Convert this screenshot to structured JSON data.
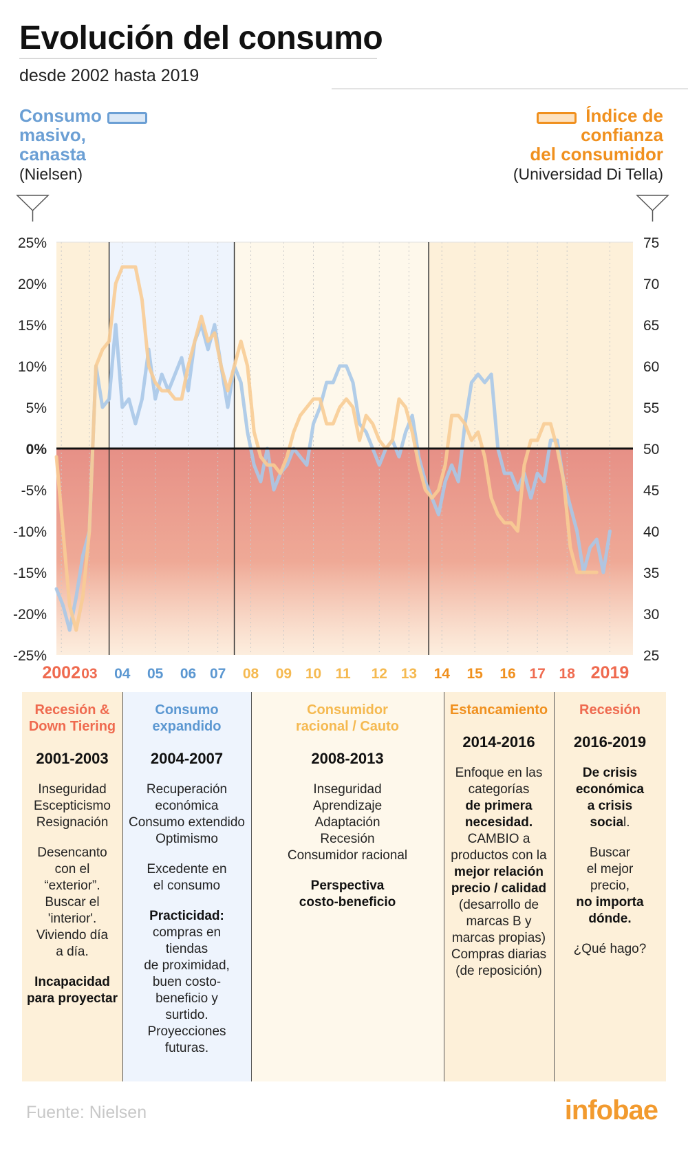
{
  "title": "Evolución del consumo",
  "subtitle": "desde 2002 hasta 2019",
  "legend": {
    "left": {
      "lines": [
        "Consumo",
        "masivo,",
        "canasta"
      ],
      "source": "(Nielsen)",
      "color": "#6b9fd4"
    },
    "right": {
      "lines": [
        "Índice de",
        "confianza",
        "del consumidor"
      ],
      "source": "(Universidad Di Tella)",
      "color": "#f0901e"
    }
  },
  "chart_data": {
    "type": "line",
    "x_start": 2002.0,
    "x_end": 2019.5,
    "y_left": {
      "ticks": [
        "25%",
        "20%",
        "15%",
        "10%",
        "5%",
        "0%",
        "-5%",
        "-10%",
        "-15%",
        "-20%",
        "-25%"
      ],
      "range": [
        -25,
        25
      ]
    },
    "y_right": {
      "ticks": [
        "75",
        "70",
        "65",
        "60",
        "55",
        "50",
        "45",
        "40",
        "35",
        "30",
        "25"
      ],
      "range": [
        25,
        75
      ]
    },
    "x_ticks": [
      {
        "label": "2002",
        "x": 2002.15,
        "color": "#ef6a4f"
      },
      {
        "label": "03",
        "x": 2003.0,
        "color": "#ef6a4f"
      },
      {
        "label": "04",
        "x": 2004.0,
        "color": "#5b97d1"
      },
      {
        "label": "05",
        "x": 2005.0,
        "color": "#5b97d1"
      },
      {
        "label": "06",
        "x": 2006.0,
        "color": "#5b97d1"
      },
      {
        "label": "07",
        "x": 2006.9,
        "color": "#5b97d1"
      },
      {
        "label": "08",
        "x": 2007.9,
        "color": "#f5b950"
      },
      {
        "label": "09",
        "x": 2008.9,
        "color": "#f5b950"
      },
      {
        "label": "10",
        "x": 2009.8,
        "color": "#f5b950"
      },
      {
        "label": "11",
        "x": 2010.7,
        "color": "#f5b950"
      },
      {
        "label": "12",
        "x": 2011.8,
        "color": "#f5b950"
      },
      {
        "label": "13",
        "x": 2012.7,
        "color": "#f5b950"
      },
      {
        "label": "14",
        "x": 2013.7,
        "color": "#f0901e"
      },
      {
        "label": "15",
        "x": 2014.7,
        "color": "#f0901e"
      },
      {
        "label": "16",
        "x": 2015.7,
        "color": "#f0901e"
      },
      {
        "label": "17",
        "x": 2016.6,
        "color": "#ef6a4f"
      },
      {
        "label": "18",
        "x": 2017.5,
        "color": "#ef6a4f"
      },
      {
        "label": "2019",
        "x": 2018.8,
        "color": "#ef6a4f"
      }
    ],
    "phase_dividers": [
      2003.6,
      2007.4,
      2013.3
    ],
    "series": [
      {
        "name": "Consumo masivo, canasta",
        "axis": "left",
        "color": "#a9c8e8",
        "points": [
          [
            2002.0,
            -17
          ],
          [
            2002.2,
            -19
          ],
          [
            2002.4,
            -22
          ],
          [
            2002.6,
            -18
          ],
          [
            2002.8,
            -13
          ],
          [
            2003.0,
            -10
          ],
          [
            2003.2,
            10
          ],
          [
            2003.4,
            5
          ],
          [
            2003.6,
            6
          ],
          [
            2003.8,
            15
          ],
          [
            2004.0,
            5
          ],
          [
            2004.2,
            6
          ],
          [
            2004.4,
            3
          ],
          [
            2004.6,
            6
          ],
          [
            2004.8,
            12
          ],
          [
            2005.0,
            6
          ],
          [
            2005.2,
            9
          ],
          [
            2005.4,
            7
          ],
          [
            2005.6,
            9
          ],
          [
            2005.8,
            11
          ],
          [
            2006.0,
            7
          ],
          [
            2006.2,
            13
          ],
          [
            2006.4,
            15
          ],
          [
            2006.6,
            12
          ],
          [
            2006.8,
            15
          ],
          [
            2007.0,
            10
          ],
          [
            2007.2,
            5
          ],
          [
            2007.4,
            10
          ],
          [
            2007.6,
            8
          ],
          [
            2007.8,
            2
          ],
          [
            2008.0,
            -2
          ],
          [
            2008.2,
            -4
          ],
          [
            2008.4,
            0
          ],
          [
            2008.6,
            -5
          ],
          [
            2008.8,
            -3
          ],
          [
            2009.0,
            -2
          ],
          [
            2009.2,
            0
          ],
          [
            2009.4,
            -1
          ],
          [
            2009.6,
            -2
          ],
          [
            2009.8,
            3
          ],
          [
            2010.0,
            5
          ],
          [
            2010.2,
            8
          ],
          [
            2010.4,
            8
          ],
          [
            2010.6,
            10
          ],
          [
            2010.8,
            10
          ],
          [
            2011.0,
            8
          ],
          [
            2011.2,
            3
          ],
          [
            2011.4,
            2
          ],
          [
            2011.6,
            0
          ],
          [
            2011.8,
            -2
          ],
          [
            2012.0,
            0
          ],
          [
            2012.2,
            1
          ],
          [
            2012.4,
            -1
          ],
          [
            2012.6,
            2
          ],
          [
            2012.8,
            4
          ],
          [
            2013.0,
            -1
          ],
          [
            2013.2,
            -4
          ],
          [
            2013.4,
            -6
          ],
          [
            2013.6,
            -8
          ],
          [
            2013.8,
            -4
          ],
          [
            2014.0,
            -2
          ],
          [
            2014.2,
            -4
          ],
          [
            2014.4,
            3
          ],
          [
            2014.6,
            8
          ],
          [
            2014.8,
            9
          ],
          [
            2015.0,
            8
          ],
          [
            2015.2,
            9
          ],
          [
            2015.4,
            0
          ],
          [
            2015.6,
            -3
          ],
          [
            2015.8,
            -3
          ],
          [
            2016.0,
            -5
          ],
          [
            2016.2,
            -3
          ],
          [
            2016.4,
            -6
          ],
          [
            2016.6,
            -3
          ],
          [
            2016.8,
            -4
          ],
          [
            2017.0,
            1
          ],
          [
            2017.2,
            1
          ],
          [
            2017.4,
            -4
          ],
          [
            2017.6,
            -7
          ],
          [
            2017.8,
            -10
          ],
          [
            2018.0,
            -15
          ],
          [
            2018.2,
            -12
          ],
          [
            2018.4,
            -11
          ],
          [
            2018.6,
            -15
          ],
          [
            2018.8,
            -10
          ]
        ]
      },
      {
        "name": "Índice de confianza del consumidor",
        "axis": "right",
        "color": "#f8cc95",
        "points": [
          [
            2002.0,
            49
          ],
          [
            2002.2,
            40
          ],
          [
            2002.4,
            31
          ],
          [
            2002.6,
            28
          ],
          [
            2002.8,
            32
          ],
          [
            2003.0,
            40
          ],
          [
            2003.2,
            60
          ],
          [
            2003.4,
            62
          ],
          [
            2003.6,
            63
          ],
          [
            2003.8,
            70
          ],
          [
            2004.0,
            72
          ],
          [
            2004.2,
            72
          ],
          [
            2004.4,
            72
          ],
          [
            2004.6,
            68
          ],
          [
            2004.8,
            60
          ],
          [
            2005.0,
            58
          ],
          [
            2005.2,
            57
          ],
          [
            2005.4,
            57
          ],
          [
            2005.6,
            56
          ],
          [
            2005.8,
            56
          ],
          [
            2006.0,
            60
          ],
          [
            2006.2,
            63
          ],
          [
            2006.4,
            66
          ],
          [
            2006.6,
            63
          ],
          [
            2006.8,
            64
          ],
          [
            2007.0,
            60
          ],
          [
            2007.2,
            57
          ],
          [
            2007.4,
            60
          ],
          [
            2007.6,
            63
          ],
          [
            2007.8,
            60
          ],
          [
            2008.0,
            52
          ],
          [
            2008.2,
            49
          ],
          [
            2008.4,
            48
          ],
          [
            2008.6,
            48
          ],
          [
            2008.8,
            47
          ],
          [
            2009.0,
            49
          ],
          [
            2009.2,
            52
          ],
          [
            2009.4,
            54
          ],
          [
            2009.6,
            55
          ],
          [
            2009.8,
            56
          ],
          [
            2010.0,
            56
          ],
          [
            2010.2,
            53
          ],
          [
            2010.4,
            53
          ],
          [
            2010.6,
            55
          ],
          [
            2010.8,
            56
          ],
          [
            2011.0,
            55
          ],
          [
            2011.2,
            51
          ],
          [
            2011.4,
            54
          ],
          [
            2011.6,
            53
          ],
          [
            2011.8,
            51
          ],
          [
            2012.0,
            50
          ],
          [
            2012.2,
            51
          ],
          [
            2012.4,
            56
          ],
          [
            2012.6,
            55
          ],
          [
            2012.8,
            52
          ],
          [
            2013.0,
            48
          ],
          [
            2013.2,
            45
          ],
          [
            2013.4,
            44
          ],
          [
            2013.6,
            45
          ],
          [
            2013.8,
            48
          ],
          [
            2014.0,
            54
          ],
          [
            2014.2,
            54
          ],
          [
            2014.4,
            53
          ],
          [
            2014.6,
            51
          ],
          [
            2014.8,
            52
          ],
          [
            2015.0,
            49
          ],
          [
            2015.2,
            44
          ],
          [
            2015.4,
            42
          ],
          [
            2015.6,
            41
          ],
          [
            2015.8,
            41
          ],
          [
            2016.0,
            40
          ],
          [
            2016.2,
            48
          ],
          [
            2016.4,
            51
          ],
          [
            2016.6,
            51
          ],
          [
            2016.8,
            53
          ],
          [
            2017.0,
            53
          ],
          [
            2017.2,
            50
          ],
          [
            2017.4,
            46
          ],
          [
            2017.6,
            38
          ],
          [
            2017.8,
            35
          ],
          [
            2018.0,
            35
          ],
          [
            2018.2,
            35
          ],
          [
            2018.4,
            35
          ]
        ]
      }
    ]
  },
  "phases": [
    {
      "title": [
        "Recesión &",
        "Down Tiering"
      ],
      "years": "2001-2003",
      "color": "#ef6a4f",
      "bg": "#fdf0d9",
      "body": [
        [
          "Inseguridad",
          "Escepticismo",
          "Resignación"
        ],
        [
          "Desencanto",
          "con el",
          "“exterior”.",
          "Buscar el",
          "'interior'.",
          "Viviendo día",
          "a día."
        ]
      ],
      "bold": [
        "Incapacidad",
        "para proyectar"
      ]
    },
    {
      "title": [
        "Consumo",
        "expandido"
      ],
      "years": "2004-2007",
      "color": "#5b97d1",
      "bg": "#eef4fd",
      "body": [
        [
          "Recuperación",
          "económica",
          "Consumo extendido",
          "Optimismo"
        ],
        [
          "Excedente en",
          "el consumo"
        ]
      ],
      "bold": [
        "Practicidad:"
      ],
      "tail": [
        "compras en",
        "tiendas",
        "de proximidad,",
        "buen costo-",
        "beneficio y",
        "surtido.",
        "Proyecciones",
        "futuras."
      ]
    },
    {
      "title": [
        "Consumidor",
        "racional / Cauto"
      ],
      "years": "2008-2013",
      "color": "#f5b950",
      "bg": "#fef8eb",
      "body": [
        [
          "Inseguridad",
          "Aprendizaje",
          "Adaptación",
          "Recesión",
          "Consumidor racional"
        ]
      ],
      "bold": [
        "Perspectiva",
        "costo-beneficio"
      ]
    },
    {
      "title": [
        "Estancamiento"
      ],
      "years": "2014-2016",
      "color": "#f0901e",
      "bg": "#fdf0d9",
      "lines": [
        {
          "t": "Enfoque en las",
          "b": false
        },
        {
          "t": "categorías",
          "b": false
        },
        {
          "t": "de primera",
          "b": true
        },
        {
          "t": "necesidad.",
          "b": true
        },
        {
          "t": "CAMBIO a",
          "b": false
        },
        {
          "t": "productos con la",
          "b": false
        },
        {
          "t": "mejor relación",
          "b": true
        },
        {
          "t": "precio / calidad",
          "b": true
        },
        {
          "t": "(desarrollo de",
          "b": false
        },
        {
          "t": "marcas B y",
          "b": false
        },
        {
          "t": "marcas propias)",
          "b": false
        },
        {
          "t": "Compras diarias",
          "b": false
        },
        {
          "t": "(de reposición)",
          "b": false
        }
      ]
    },
    {
      "title": [
        "Recesión"
      ],
      "years": "2016-2019",
      "color": "#ef6a4f",
      "bg": "#fdf0d9",
      "lines2": {
        "b1": [
          "De crisis",
          "económica",
          "a crisis",
          "socia"
        ],
        "n1": "l.",
        "n2": [
          "Buscar",
          "el mejor",
          "precio,"
        ],
        "b2": [
          "no importa",
          "dónde."
        ],
        "n3": "¿Qué hago?"
      }
    }
  ],
  "source": "Fuente: Nielsen",
  "logo": "infobae"
}
